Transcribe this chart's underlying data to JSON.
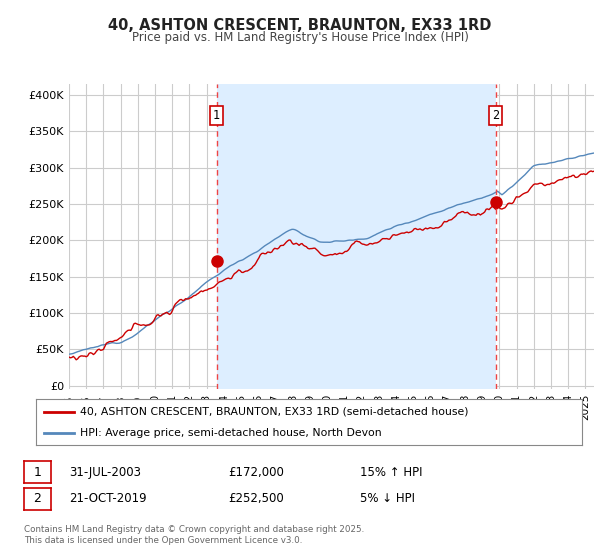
{
  "title": "40, ASHTON CRESCENT, BRAUNTON, EX33 1RD",
  "subtitle": "Price paid vs. HM Land Registry's House Price Index (HPI)",
  "ylabel_ticks": [
    "£0",
    "£50K",
    "£100K",
    "£150K",
    "£200K",
    "£250K",
    "£300K",
    "£350K",
    "£400K"
  ],
  "ytick_values": [
    0,
    50000,
    100000,
    150000,
    200000,
    250000,
    300000,
    350000,
    400000
  ],
  "ylim": [
    -5000,
    415000
  ],
  "xlim_start": 1995.0,
  "xlim_end": 2025.5,
  "fig_bg_color": "#ffffff",
  "plot_bg_color": "#ffffff",
  "grid_color": "#cccccc",
  "shade_color": "#ddeeff",
  "marker1_date": 2003.58,
  "marker1_price": 172000,
  "marker2_date": 2019.8,
  "marker2_price": 252500,
  "legend_line1": "40, ASHTON CRESCENT, BRAUNTON, EX33 1RD (semi-detached house)",
  "legend_line2": "HPI: Average price, semi-detached house, North Devon",
  "footer_line1": "Contains HM Land Registry data © Crown copyright and database right 2025.",
  "footer_line2": "This data is licensed under the Open Government Licence v3.0.",
  "line_color_red": "#cc0000",
  "line_color_blue": "#5588bb",
  "marker_dot_color": "#cc0000",
  "vline_color": "#ee4444",
  "box_edge_color": "#cc0000"
}
